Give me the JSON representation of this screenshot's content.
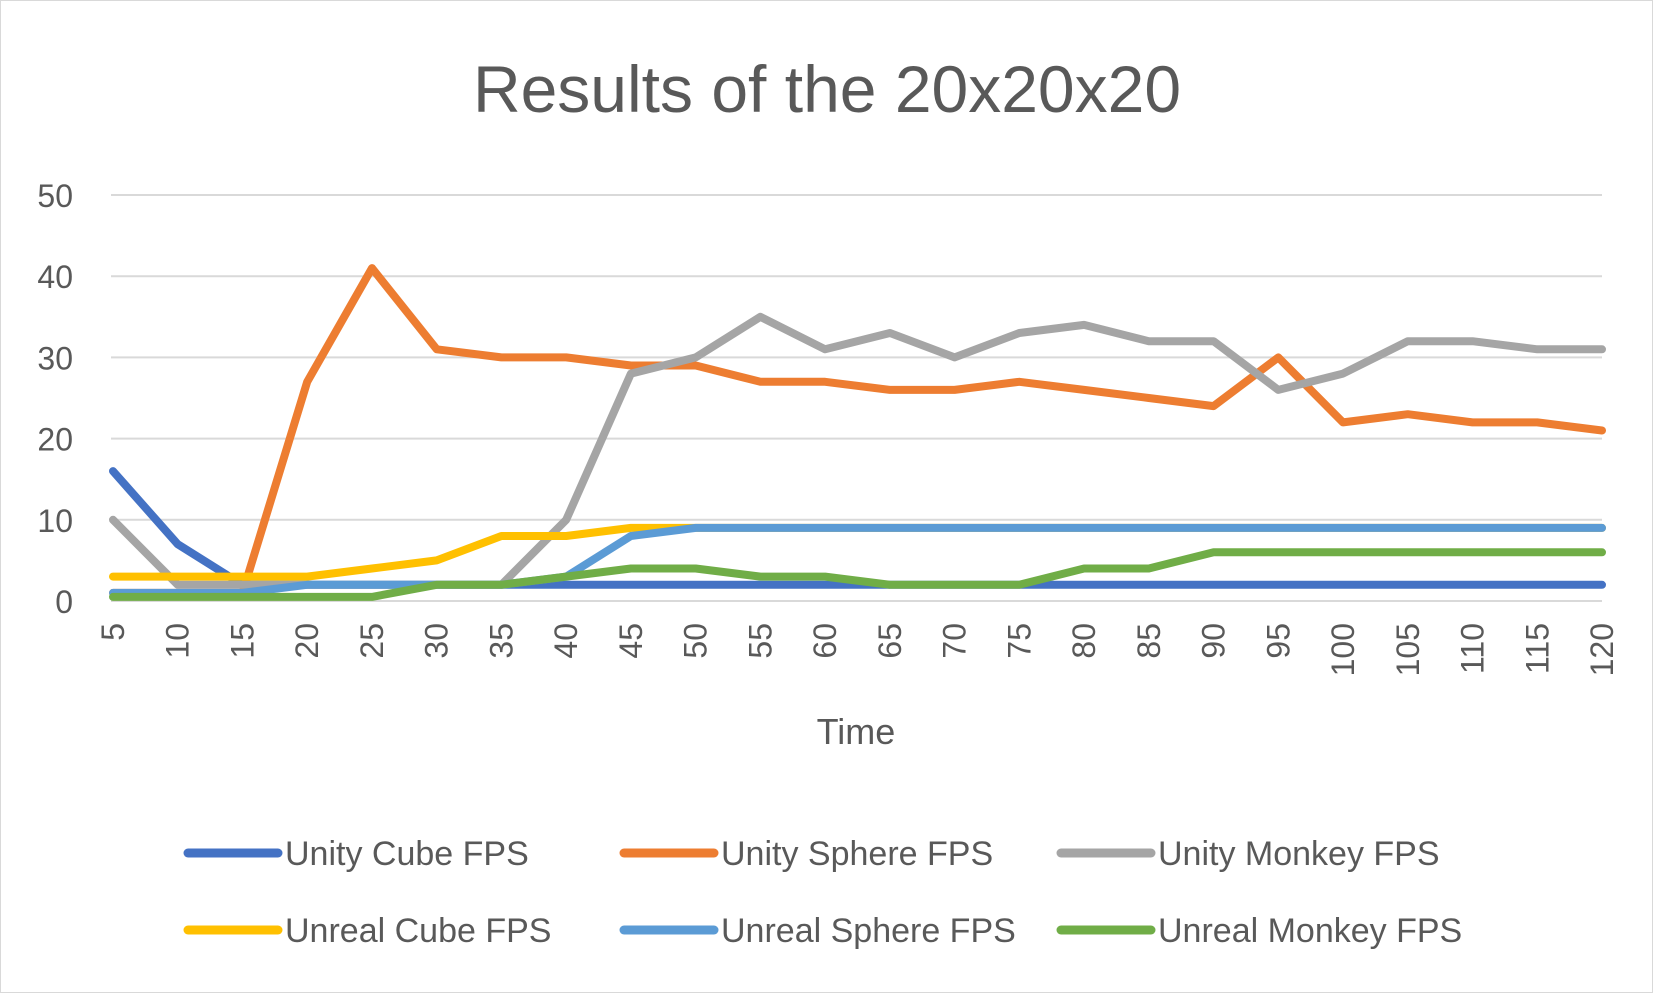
{
  "chart_data": {
    "type": "line",
    "title": "Results of the 20x20x20",
    "xlabel": "Time",
    "ylabel": "",
    "x": [
      5,
      10,
      15,
      20,
      25,
      30,
      35,
      40,
      45,
      50,
      55,
      60,
      65,
      70,
      75,
      80,
      85,
      90,
      95,
      100,
      105,
      110,
      115,
      120
    ],
    "ylim": [
      0,
      50
    ],
    "yticks": [
      0,
      10,
      20,
      30,
      40,
      50
    ],
    "grid": true,
    "legend_position": "bottom",
    "series": [
      {
        "name": "Unity Cube FPS",
        "color": "#4472c4",
        "values": [
          16,
          7,
          2,
          2,
          2,
          2,
          2,
          2,
          2,
          2,
          2,
          2,
          2,
          2,
          2,
          2,
          2,
          2,
          2,
          2,
          2,
          2,
          2,
          2
        ]
      },
      {
        "name": "Unity Sphere FPS",
        "color": "#ed7d31",
        "values": [
          1,
          1,
          1,
          27,
          41,
          31,
          30,
          30,
          29,
          29,
          27,
          27,
          26,
          26,
          27,
          26,
          25,
          24,
          30,
          22,
          23,
          22,
          22,
          21
        ]
      },
      {
        "name": "Unity Monkey FPS",
        "color": "#a5a5a5",
        "values": [
          10,
          2,
          2,
          2,
          2,
          2,
          2,
          10,
          28,
          30,
          35,
          31,
          33,
          30,
          33,
          34,
          32,
          32,
          26,
          28,
          32,
          32,
          31,
          31
        ]
      },
      {
        "name": "Unreal Cube FPS",
        "color": "#ffc000",
        "values": [
          3,
          3,
          3,
          3,
          4,
          5,
          8,
          8,
          9,
          9,
          9,
          9,
          9,
          9,
          9,
          9,
          9,
          9,
          9,
          9,
          9,
          9,
          9,
          9
        ]
      },
      {
        "name": "Unreal Sphere FPS",
        "color": "#5b9bd5",
        "values": [
          1,
          1,
          1,
          2,
          2,
          2,
          2,
          3,
          8,
          9,
          9,
          9,
          9,
          9,
          9,
          9,
          9,
          9,
          9,
          9,
          9,
          9,
          9,
          9
        ]
      },
      {
        "name": "Unreal Monkey FPS",
        "color": "#70ad47",
        "values": [
          0.5,
          0.5,
          0.5,
          0.5,
          0.5,
          2,
          2,
          3,
          4,
          4,
          3,
          3,
          2,
          2,
          2,
          4,
          4,
          6,
          6,
          6,
          6,
          6,
          6,
          6
        ]
      }
    ]
  }
}
